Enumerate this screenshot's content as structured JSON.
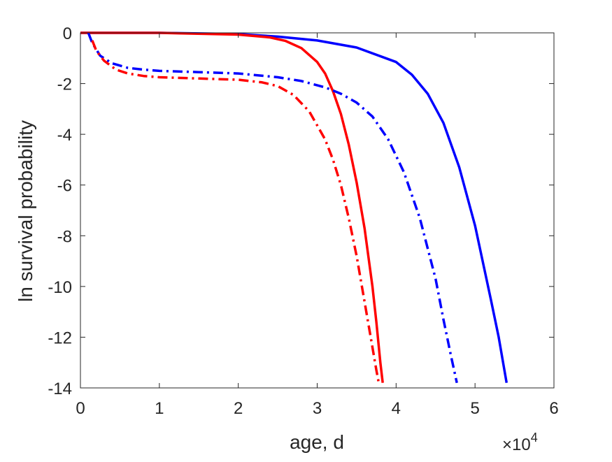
{
  "chart_data": {
    "type": "line",
    "title": "",
    "xlabel": "age, d",
    "ylabel": "ln survival probability",
    "x_exponent_base": "10",
    "x_exponent_power": "4",
    "x_multiplier_symbol": "×",
    "xlim": [
      0,
      60000
    ],
    "ylim": [
      -14,
      0
    ],
    "xticks": [
      0,
      10000,
      20000,
      30000,
      40000,
      50000,
      60000
    ],
    "xtick_labels": [
      "0",
      "1",
      "2",
      "3",
      "4",
      "5",
      "6"
    ],
    "yticks": [
      0,
      -2,
      -4,
      -6,
      -8,
      -10,
      -12,
      -14
    ],
    "ytick_labels": [
      "0",
      "-2",
      "-4",
      "-6",
      "-8",
      "-10",
      "-12",
      "-14"
    ],
    "grid": false,
    "legend": "none",
    "series": [
      {
        "color": "#0000ff",
        "style": "solid",
        "x": [
          0,
          10000,
          20000,
          25000,
          30000,
          35000,
          40000,
          42000,
          44000,
          46000,
          48000,
          50000,
          52000,
          53000,
          54000
        ],
        "y": [
          0,
          0,
          -0.05,
          -0.15,
          -0.3,
          -0.58,
          -1.15,
          -1.65,
          -2.4,
          -3.55,
          -5.3,
          -7.6,
          -10.5,
          -12.0,
          -13.8
        ]
      },
      {
        "color": "#ff0000",
        "style": "solid",
        "x": [
          0,
          10000,
          20000,
          24000,
          26000,
          28000,
          30000,
          31000,
          32000,
          33000,
          34000,
          35000,
          36000,
          37000,
          37500,
          38000,
          38300
        ],
        "y": [
          0,
          0,
          -0.07,
          -0.18,
          -0.32,
          -0.6,
          -1.15,
          -1.6,
          -2.3,
          -3.2,
          -4.4,
          -5.9,
          -7.7,
          -10.0,
          -11.4,
          -13.0,
          -13.8
        ]
      },
      {
        "color": "#0000ff",
        "style": "dashdot",
        "x": [
          1000,
          1500,
          2500,
          4000,
          6000,
          8000,
          10000,
          15000,
          20000,
          25000,
          28000,
          31000,
          33000,
          35000,
          37000,
          39000,
          41000,
          43000,
          45000,
          46000,
          47000,
          47700
        ],
        "y": [
          0,
          -0.4,
          -0.9,
          -1.2,
          -1.38,
          -1.45,
          -1.5,
          -1.55,
          -1.6,
          -1.75,
          -1.9,
          -2.15,
          -2.4,
          -2.75,
          -3.3,
          -4.2,
          -5.5,
          -7.3,
          -9.7,
          -11.3,
          -12.8,
          -13.8
        ]
      },
      {
        "color": "#ff0000",
        "style": "dashdot",
        "x": [
          1500,
          2000,
          3000,
          4500,
          6000,
          8000,
          10000,
          15000,
          20000,
          23000,
          25000,
          27000,
          29000,
          31000,
          32000,
          33000,
          34000,
          35000,
          36000,
          37000,
          37500,
          37800
        ],
        "y": [
          -0.3,
          -0.7,
          -1.1,
          -1.45,
          -1.6,
          -1.7,
          -1.75,
          -1.8,
          -1.85,
          -1.95,
          -2.1,
          -2.45,
          -3.1,
          -4.2,
          -5.0,
          -6.0,
          -7.3,
          -8.8,
          -10.6,
          -12.4,
          -13.3,
          -13.8
        ]
      }
    ]
  }
}
